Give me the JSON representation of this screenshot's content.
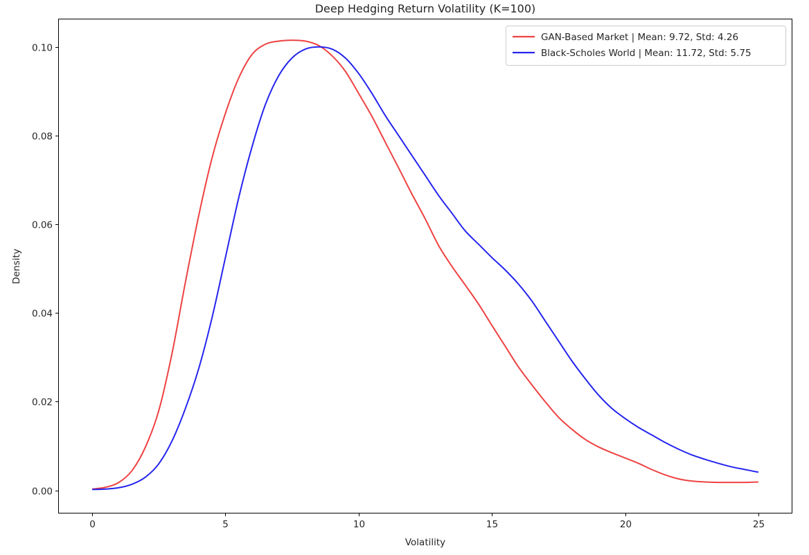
{
  "chart_data": {
    "type": "line",
    "title": "Deep Hedging Return Volatility (K=100)",
    "xlabel": "Volatility",
    "ylabel": "Density",
    "xlim": [
      -1.25,
      26.25
    ],
    "ylim": [
      -0.00505,
      0.1062
    ],
    "xticks": [
      0,
      5,
      10,
      15,
      20,
      25
    ],
    "xtick_labels": [
      "0",
      "5",
      "10",
      "15",
      "20",
      "25"
    ],
    "yticks": [
      0.0,
      0.02,
      0.04,
      0.06,
      0.08,
      0.1
    ],
    "ytick_labels": [
      "0.00",
      "0.02",
      "0.04",
      "0.06",
      "0.08",
      "0.10"
    ],
    "grid": false,
    "legend_position": "top-right",
    "series": [
      {
        "name": "GAN-Based Market | Mean: 9.72, Std: 4.26",
        "color": "#ee4141",
        "x": [
          0,
          0.5,
          1,
          1.5,
          2,
          2.5,
          3,
          3.5,
          4,
          4.5,
          5,
          5.5,
          6,
          6.5,
          7,
          7.5,
          8,
          8.5,
          9,
          9.5,
          10,
          10.5,
          11,
          11.5,
          12,
          12.5,
          13,
          13.5,
          14,
          14.5,
          15,
          15.5,
          16,
          16.5,
          17,
          17.5,
          18,
          18.5,
          19,
          19.5,
          20,
          20.5,
          21,
          21.5,
          22,
          22.5,
          23,
          23.5,
          24,
          24.5,
          25
        ],
        "y": [
          0.0003,
          0.0007,
          0.0018,
          0.0045,
          0.0098,
          0.018,
          0.031,
          0.047,
          0.062,
          0.075,
          0.085,
          0.093,
          0.0983,
          0.1006,
          0.1013,
          0.1015,
          0.1013,
          0.1003,
          0.098,
          0.0945,
          0.0895,
          0.0843,
          0.0785,
          0.0727,
          0.0668,
          0.0612,
          0.0552,
          0.0505,
          0.0463,
          0.042,
          0.0372,
          0.0325,
          0.0278,
          0.0238,
          0.02,
          0.0165,
          0.0138,
          0.0115,
          0.0098,
          0.0085,
          0.0073,
          0.0061,
          0.0047,
          0.0035,
          0.0026,
          0.0021,
          0.0019,
          0.0018,
          0.0018,
          0.0018,
          0.0019
        ]
      },
      {
        "name": "Black-Scholes World | Mean: 11.72, Std: 5.75",
        "color": "#2424ee",
        "x": [
          0,
          0.5,
          1,
          1.5,
          2,
          2.5,
          3,
          3.5,
          4,
          4.5,
          5,
          5.5,
          6,
          6.5,
          7,
          7.5,
          8,
          8.5,
          9,
          9.5,
          10,
          10.5,
          11,
          11.5,
          12,
          12.5,
          13,
          13.5,
          14,
          14.5,
          15,
          15.5,
          16,
          16.5,
          17,
          17.5,
          18,
          18.5,
          19,
          19.5,
          20,
          20.5,
          21,
          21.5,
          22,
          22.5,
          23,
          23.5,
          24,
          24.5,
          25
        ],
        "y": [
          0.0002,
          0.0003,
          0.0006,
          0.0014,
          0.003,
          0.006,
          0.0112,
          0.0185,
          0.0275,
          0.039,
          0.0525,
          0.066,
          0.0775,
          0.087,
          0.0935,
          0.0975,
          0.0995,
          0.1,
          0.0995,
          0.0975,
          0.094,
          0.0895,
          0.0845,
          0.08,
          0.0755,
          0.071,
          0.0665,
          0.0625,
          0.0585,
          0.0555,
          0.0525,
          0.0497,
          0.0465,
          0.0427,
          0.0382,
          0.0337,
          0.0292,
          0.0252,
          0.0215,
          0.0185,
          0.0162,
          0.0142,
          0.0125,
          0.0108,
          0.0093,
          0.008,
          0.007,
          0.0061,
          0.0053,
          0.0047,
          0.0041
        ]
      }
    ]
  }
}
